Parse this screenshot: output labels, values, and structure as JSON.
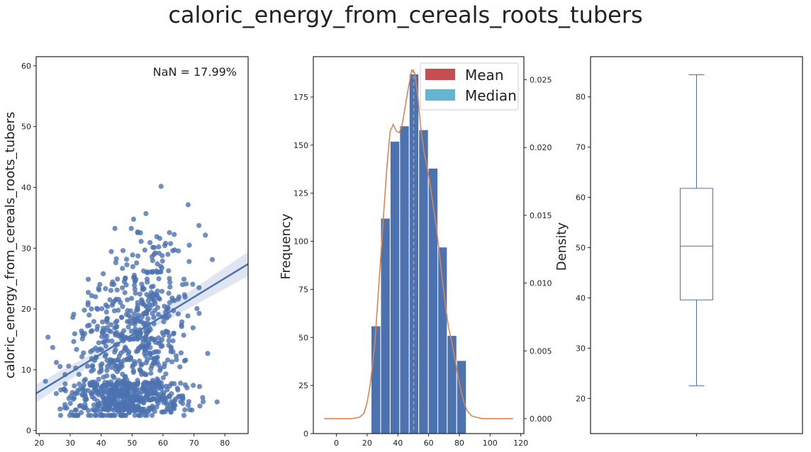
{
  "title": "caloric_energy_from_cereals_roots_tubers",
  "colors": {
    "points": "#4c72b0",
    "bars": "#4c72b0",
    "kde": "#dd8452",
    "mean": "#c44e52",
    "median": "#64b5cd",
    "box": "#4c72b0",
    "axis": "#222222"
  },
  "chart_data": [
    {
      "type": "scatter",
      "ylabel": "caloric_energy_from_cereals_roots_tubers",
      "xlabel": "",
      "annotation": "NaN = 17.99%",
      "xlim": [
        19,
        87.5
      ],
      "ylim": [
        -0.5,
        61.5
      ],
      "xticks": [
        20,
        30,
        40,
        50,
        60,
        70,
        80
      ],
      "yticks": [
        0,
        10,
        20,
        30,
        40,
        50,
        60
      ],
      "regression": {
        "x": [
          19,
          87.5
        ],
        "y": [
          6.1,
          27.4
        ]
      },
      "grid": false
    },
    {
      "type": "bar",
      "ylabel": "Frequency",
      "y2label": "Density",
      "xlim": [
        -15,
        122
      ],
      "ylim": [
        0,
        196
      ],
      "y2lim": [
        -0.0011,
        0.0267
      ],
      "xticks": [
        0,
        20,
        40,
        60,
        80,
        100,
        120
      ],
      "yticks": [
        0,
        25,
        50,
        75,
        100,
        125,
        150,
        175
      ],
      "y2ticks": [
        0.0,
        0.005,
        0.01,
        0.015,
        0.02,
        0.025
      ],
      "y2ticklabels": [
        "0.000",
        "0.005",
        "0.010",
        "0.015",
        "0.020",
        "0.025"
      ],
      "bins": [
        {
          "x0": 22.6,
          "x1": 28.8,
          "count": 56
        },
        {
          "x0": 28.8,
          "x1": 35.0,
          "count": 112
        },
        {
          "x0": 35.0,
          "x1": 41.2,
          "count": 152
        },
        {
          "x0": 41.2,
          "x1": 47.4,
          "count": 160
        },
        {
          "x0": 47.4,
          "x1": 53.6,
          "count": 187
        },
        {
          "x0": 53.6,
          "x1": 59.8,
          "count": 158
        },
        {
          "x0": 59.8,
          "x1": 66.0,
          "count": 138
        },
        {
          "x0": 66.0,
          "x1": 72.1,
          "count": 97
        },
        {
          "x0": 72.1,
          "x1": 78.3,
          "count": 51
        },
        {
          "x0": 78.3,
          "x1": 84.5,
          "count": 38
        }
      ],
      "mean": 50.2,
      "median": 50.3,
      "legend": [
        "Mean",
        "Median"
      ],
      "legend_position": "top-right",
      "kde": {
        "x": [
          -8,
          10,
          15,
          18,
          20,
          22,
          25,
          28,
          31,
          33,
          35,
          37,
          39,
          41,
          43,
          45,
          47,
          49,
          51,
          53,
          55,
          57,
          59,
          61,
          63,
          65,
          67,
          69,
          71,
          73,
          75,
          77,
          79,
          81,
          83,
          85,
          88,
          91,
          95,
          100,
          115
        ],
        "y": [
          0.0,
          0.0,
          0.0001,
          0.0004,
          0.0012,
          0.0025,
          0.0055,
          0.0105,
          0.0155,
          0.0188,
          0.0212,
          0.0217,
          0.0212,
          0.0211,
          0.0218,
          0.0232,
          0.0245,
          0.0257,
          0.0255,
          0.0238,
          0.0213,
          0.0197,
          0.0186,
          0.0172,
          0.0157,
          0.0142,
          0.0122,
          0.0102,
          0.0083,
          0.0067,
          0.0057,
          0.0045,
          0.0032,
          0.0021,
          0.0012,
          0.0006,
          0.0002,
          0.0001,
          0.0,
          0.0,
          0.0
        ]
      },
      "grid": false
    },
    {
      "type": "box",
      "ylim": [
        13,
        88
      ],
      "yticks": [
        20,
        30,
        40,
        50,
        60,
        70,
        80
      ],
      "min": 22.5,
      "q1": 39.6,
      "median": 50.3,
      "q3": 61.8,
      "max": 84.4,
      "grid": false
    }
  ]
}
